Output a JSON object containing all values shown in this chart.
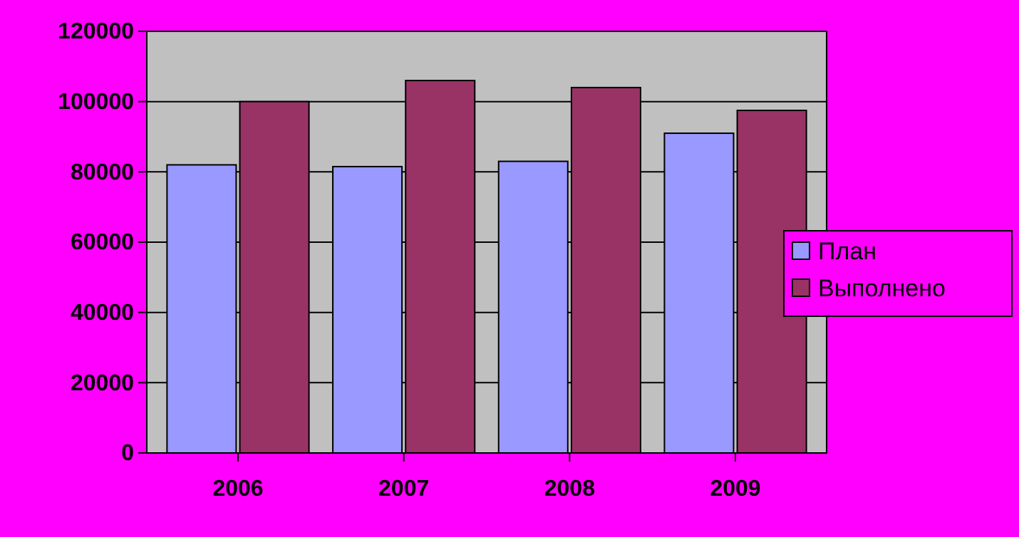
{
  "chart_data": {
    "type": "bar",
    "categories": [
      "2006",
      "2007",
      "2008",
      "2009"
    ],
    "series": [
      {
        "name": "План",
        "color": "#9999ff",
        "values": [
          82000,
          81500,
          83000,
          91000
        ]
      },
      {
        "name": "Выполнено",
        "color": "#993366",
        "values": [
          100000,
          106000,
          104000,
          97500
        ]
      }
    ],
    "ylim": [
      0,
      120000
    ],
    "yticks": [
      0,
      20000,
      40000,
      60000,
      80000,
      100000,
      120000
    ],
    "grid": "y",
    "legend": "right"
  }
}
